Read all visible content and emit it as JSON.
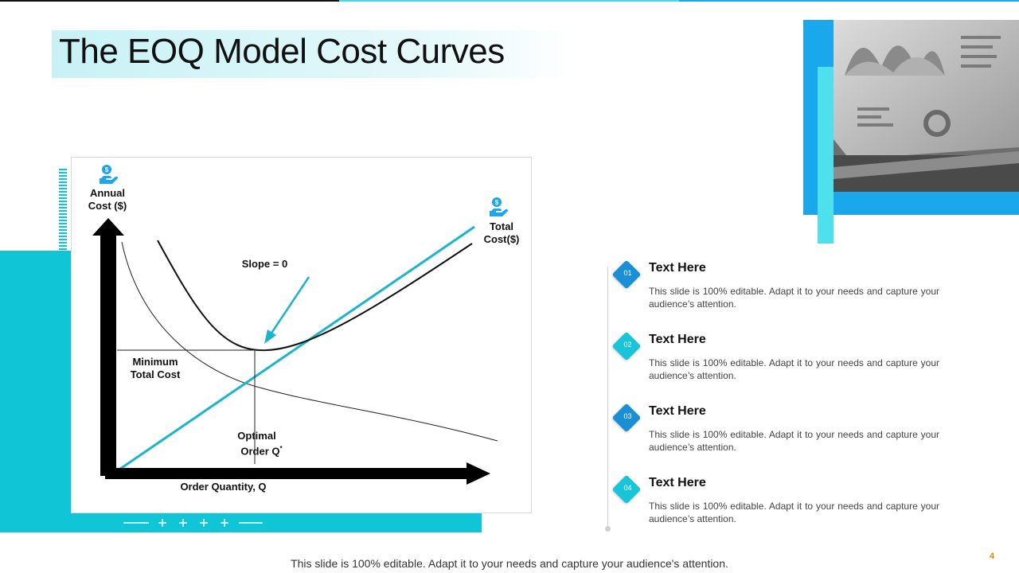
{
  "slide": {
    "title": "The EOQ Model Cost Curves",
    "footer": "This slide is 100% editable. Adapt it to your needs and capture your audience's attention.",
    "page_number": "4"
  },
  "colors": {
    "accent_teal": "#0fc5d6",
    "accent_blue": "#1aa7ec",
    "badge_dark": "#1a8fd6",
    "badge_light": "#17c4d8",
    "page_number": "#e08a00",
    "holding_line": "#1ab5cc"
  },
  "diagram": {
    "y_axis_label_line1": "Annual",
    "y_axis_label_line2": "Cost ($)",
    "total_cost_label_line1": "Total",
    "total_cost_label_line2": "Cost($)",
    "slope_label": "Slope = 0",
    "min_cost_line1": "Minimum",
    "min_cost_line2": "Total Cost",
    "optimal_line1": "Optimal",
    "optimal_line2": "Order Q",
    "optimal_superscript": "*",
    "x_axis_label": "Order Quantity, Q",
    "icons": [
      "hand-dollar-icon",
      "hand-dollar-icon"
    ]
  },
  "items": [
    {
      "num": "01",
      "title": "Text Here",
      "text": "This slide is 100% editable. Adapt it to your needs and capture your audience’s attention."
    },
    {
      "num": "02",
      "title": "Text Here",
      "text": "This slide is 100% editable. Adapt it to your needs and capture your audience’s attention."
    },
    {
      "num": "03",
      "title": "Text Here",
      "text": "This slide is 100% editable. Adapt it to your needs and capture your audience’s attention."
    },
    {
      "num": "04",
      "title": "Text Here",
      "text": "This slide is 100% editable. Adapt it to your needs and capture your audience’s attention."
    }
  ]
}
